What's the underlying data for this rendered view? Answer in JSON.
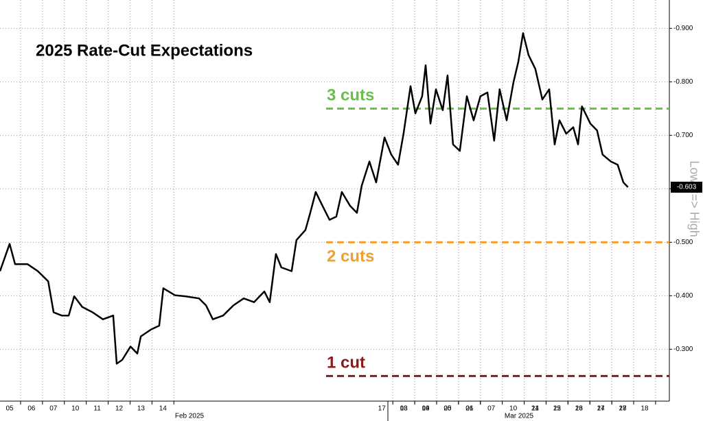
{
  "chart_data": {
    "type": "line",
    "title": "2025 Rate-Cut Expectations",
    "y_label": "Low <=> High",
    "series": [
      {
        "color": "#000000",
        "x": [
          -0.44,
          0,
          0.25,
          0.82,
          1.29,
          1.76,
          2.01,
          2.38,
          2.7,
          2.95,
          3.32,
          3.79,
          4.26,
          4.73,
          4.89,
          5.14,
          5.52,
          5.83,
          5.99,
          6.46,
          6.83,
          7.02,
          7.55,
          8.02,
          8.65,
          8.97,
          9.28,
          9.75,
          10.22,
          10.69,
          11.16,
          11.63,
          11.88,
          12.16,
          12.41,
          12.88,
          13.1,
          13.51,
          13.73,
          13.98,
          14.29,
          14.61,
          14.92,
          15.17,
          15.55,
          15.86,
          16.08,
          16.43,
          16.74,
          17.12,
          17.43,
          17.74,
          17.99,
          18.31,
          18.53,
          18.84,
          19.0,
          19.22,
          19.47,
          19.78,
          20.0,
          20.25,
          20.56,
          20.88,
          21.19,
          21.5,
          21.82,
          22.13,
          22.38,
          22.7,
          23.01,
          23.23,
          23.45,
          23.7,
          24.01,
          24.33,
          24.64,
          24.89,
          25.11,
          25.42,
          25.74,
          25.96,
          26.14,
          26.52,
          26.83,
          27.08,
          27.46,
          27.77,
          28.03,
          28.24
        ],
        "values": [
          -0.446,
          -0.497,
          -0.459,
          -0.459,
          -0.446,
          -0.427,
          -0.369,
          -0.363,
          -0.363,
          -0.399,
          -0.379,
          -0.369,
          -0.356,
          -0.363,
          -0.273,
          -0.28,
          -0.305,
          -0.292,
          -0.324,
          -0.337,
          -0.344,
          -0.414,
          -0.401,
          -0.399,
          -0.395,
          -0.382,
          -0.356,
          -0.363,
          -0.382,
          -0.395,
          -0.388,
          -0.408,
          -0.388,
          -0.478,
          -0.453,
          -0.446,
          -0.504,
          -0.523,
          -0.555,
          -0.594,
          -0.568,
          -0.542,
          -0.548,
          -0.594,
          -0.568,
          -0.555,
          -0.606,
          -0.651,
          -0.612,
          -0.696,
          -0.664,
          -0.645,
          -0.703,
          -0.792,
          -0.741,
          -0.773,
          -0.831,
          -0.722,
          -0.786,
          -0.747,
          -0.812,
          -0.683,
          -0.671,
          -0.773,
          -0.728,
          -0.773,
          -0.78,
          -0.69,
          -0.786,
          -0.728,
          -0.799,
          -0.837,
          -0.891,
          -0.85,
          -0.824,
          -0.767,
          -0.786,
          -0.683,
          -0.728,
          -0.703,
          -0.715,
          -0.683,
          -0.754,
          -0.722,
          -0.709,
          -0.664,
          -0.651,
          -0.645,
          -0.612,
          -0.603
        ]
      }
    ],
    "current": {
      "value": -0.603,
      "label": "-0.603"
    },
    "references": [
      {
        "label": "3 cuts",
        "value": -0.75,
        "color": "#6abf4b"
      },
      {
        "label": "2 cuts",
        "value": -0.5,
        "color": "#f0a030"
      },
      {
        "label": "1 cut",
        "value": -0.25,
        "color": "#8b1a1a"
      }
    ],
    "xlim": [
      -0.44,
      30.13
    ],
    "xticks": [
      {
        "value": 0,
        "label": "05"
      },
      {
        "value": 1,
        "label": "06"
      },
      {
        "value": 2,
        "label": "07"
      },
      {
        "value": 3,
        "label": "10"
      },
      {
        "value": 4,
        "label": "11"
      },
      {
        "value": 5,
        "label": "12"
      },
      {
        "value": 6,
        "label": "13"
      },
      {
        "value": 7,
        "label": "14"
      },
      17,
      18,
      19,
      20,
      21,
      24,
      25,
      26,
      27,
      28,
      {
        "value": 18,
        "label": "03"
      },
      {
        "value": 19,
        "label": "04"
      },
      {
        "value": 20,
        "label": "05"
      },
      {
        "value": 21,
        "label": "06"
      },
      {
        "value": 22,
        "label": "07"
      },
      {
        "value": 23,
        "label": "10"
      },
      {
        "value": 24,
        "label": "11"
      },
      {
        "value": 25,
        "label": "12"
      },
      {
        "value": 26,
        "label": "13"
      },
      {
        "value": 27,
        "label": "14"
      },
      {
        "value": 28,
        "label": "17"
      },
      {
        "value": 29,
        "label": "18"
      }
    ],
    "months": [
      "Feb 2025",
      "Mar 2025"
    ],
    "ylim": [
      -0.203,
      -0.953
    ],
    "yticks": [
      {
        "value": -0.9,
        "label": "-0.900"
      },
      {
        "value": -0.8,
        "label": "-0.800"
      },
      {
        "value": -0.7,
        "label": "-0.700"
      },
      {
        "value": -0.6,
        "label": "-0.600"
      },
      {
        "value": -0.5,
        "label": "-0.500"
      },
      {
        "value": -0.4,
        "label": "-0.400"
      },
      {
        "value": -0.3,
        "label": "-0.300"
      }
    ],
    "grid": true
  }
}
